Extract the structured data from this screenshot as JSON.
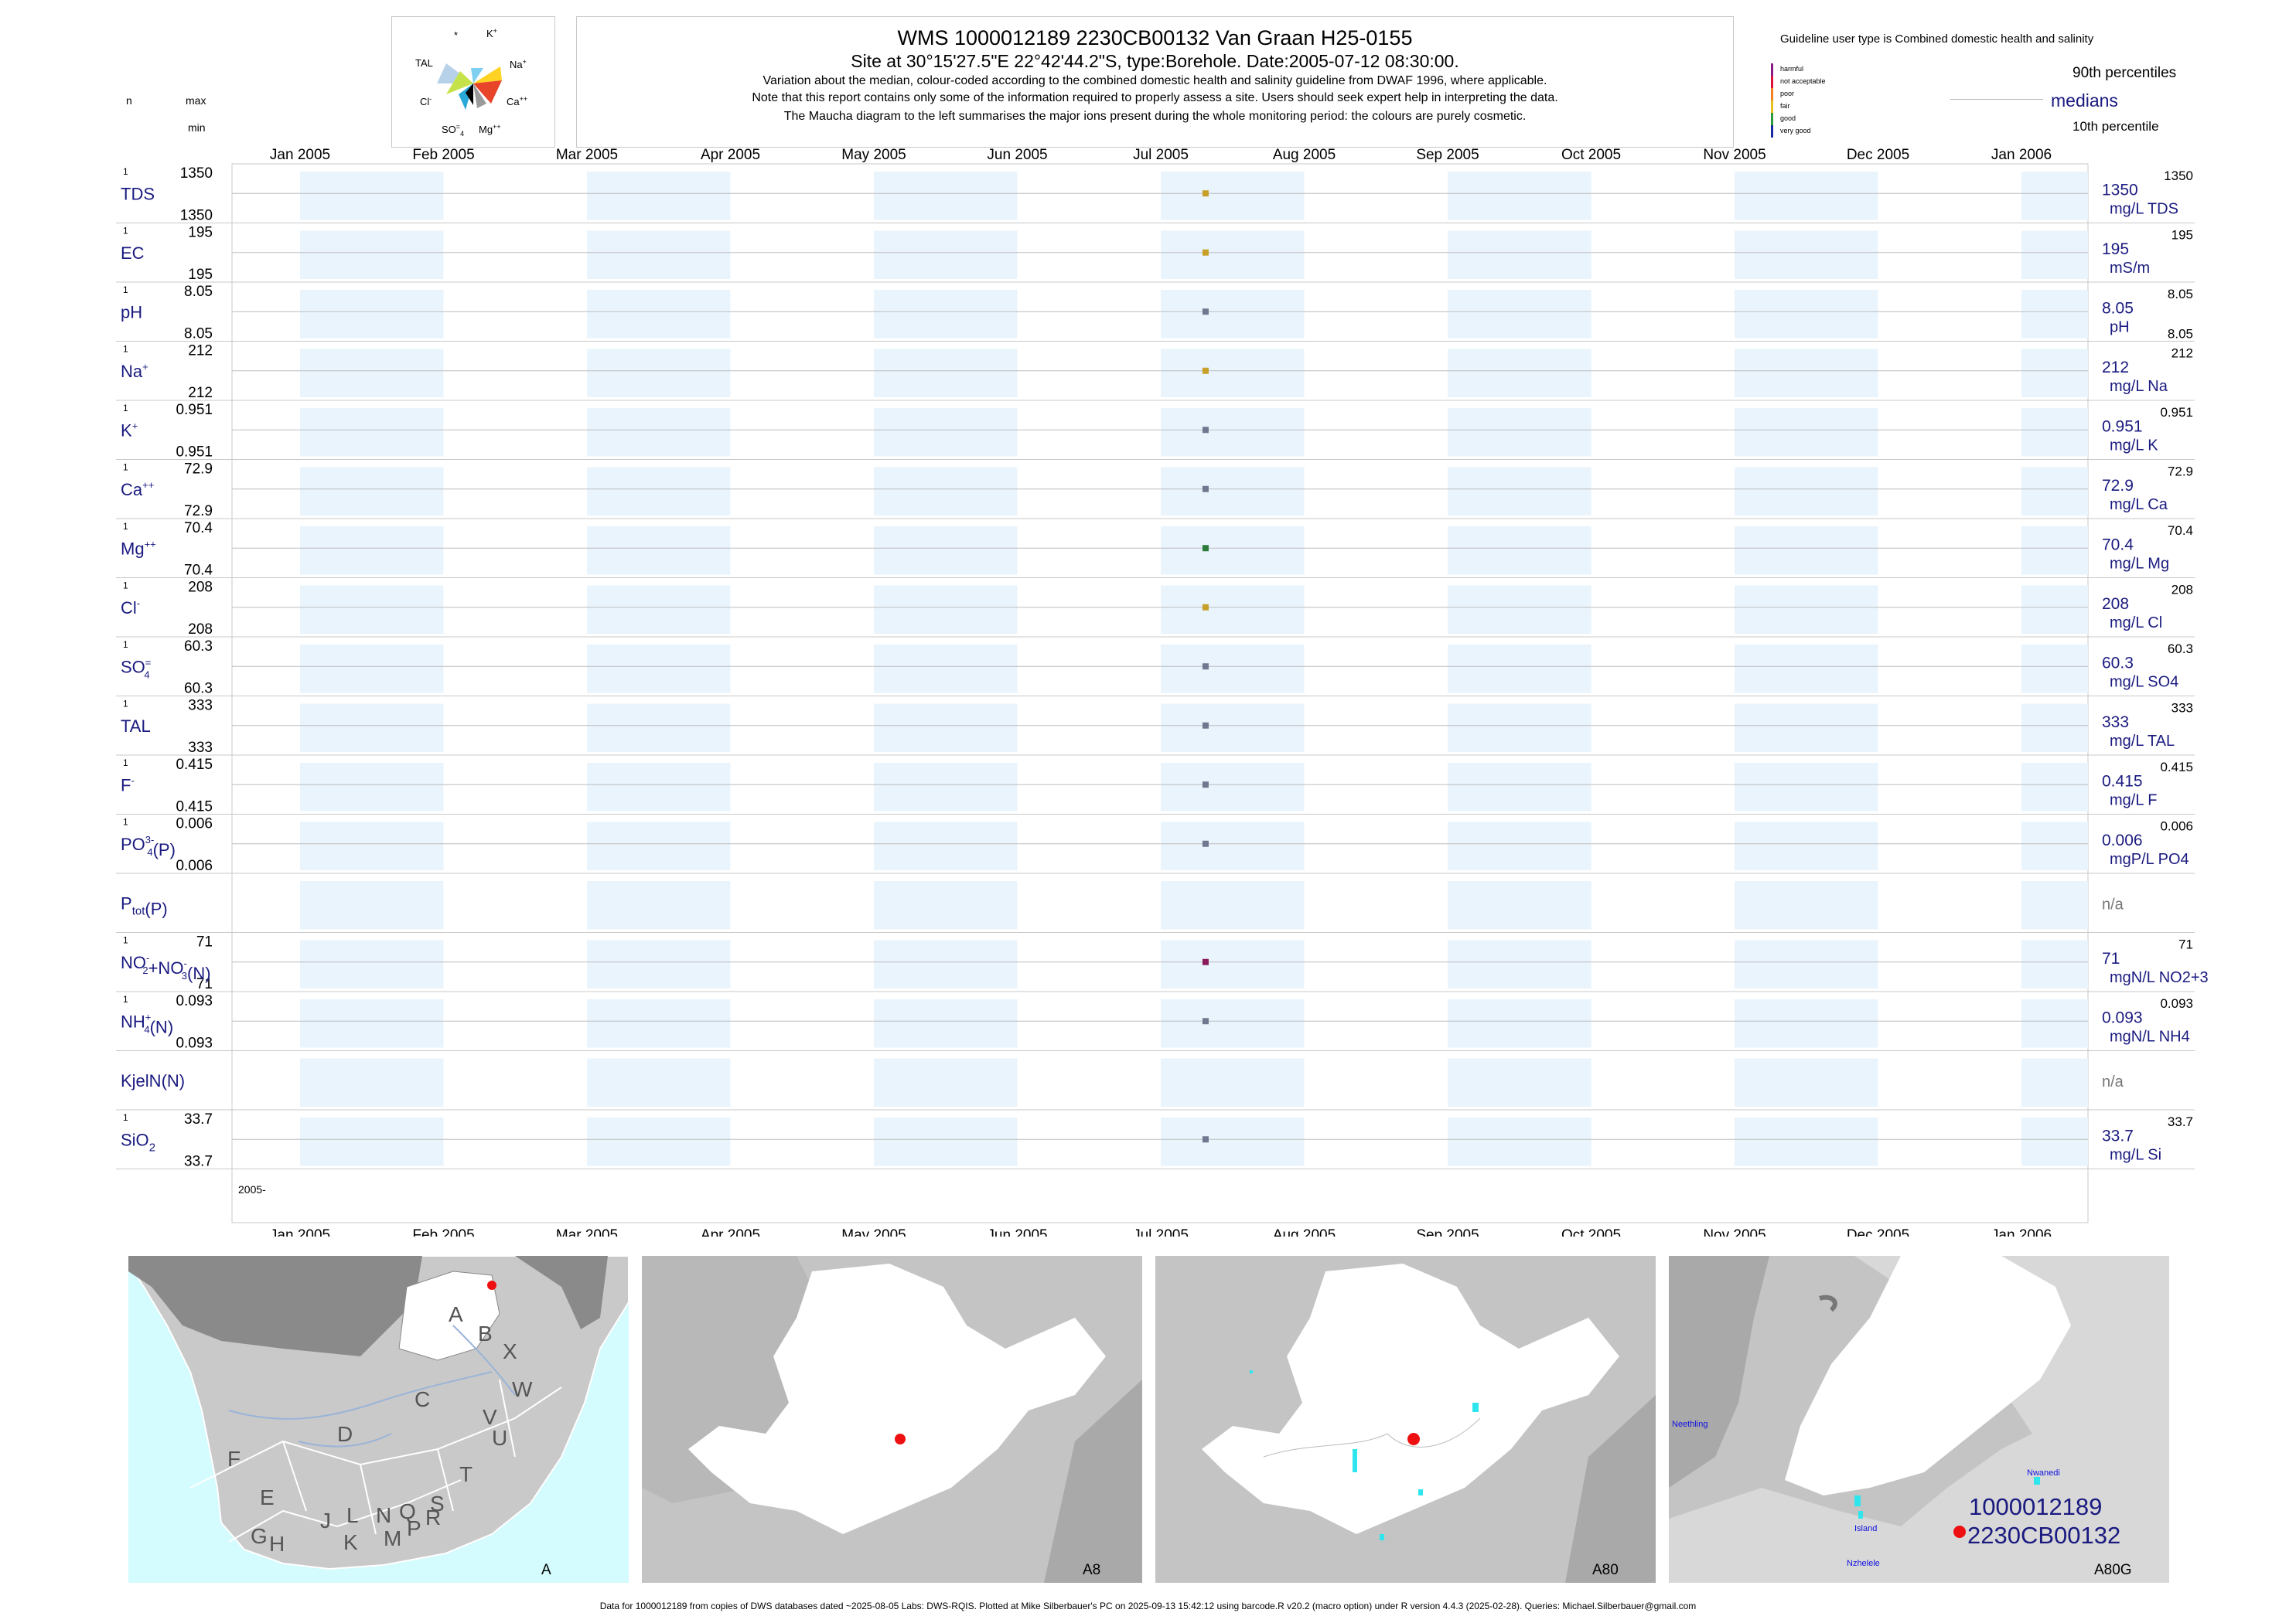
{
  "header": {
    "title": "WMS 1000012189 2230CB00132 Van Graan H25-0155",
    "subtitle": "Site at 30°15'27.5\"E 22°42'44.2\"S, type:Borehole. Date:2005-07-12 08:30:00.",
    "note1": "Variation about the median,  colour-coded according to the combined domestic health and salinity guideline from DWAF 1996, where applicable.",
    "note2": "Note that this report contains only some of the information required to properly assess a site. Users should seek expert help in interpreting the data.",
    "note3": "The Maucha diagram to the left summarises the major ions present during the whole monitoring period: the colours are purely cosmetic."
  },
  "maucha": {
    "labels": [
      "*",
      "K",
      "TAL",
      "Na",
      "Cl",
      "Ca",
      "SO",
      "Mg"
    ],
    "sup_k": "+",
    "sup_na": "+",
    "sup_cl": "-",
    "sup_ca": "++",
    "sup_so": "=",
    "sub_so": "4",
    "sup_mg": "++"
  },
  "left_header": {
    "n": "n",
    "max": "max",
    "min": "min"
  },
  "legend": {
    "guideline": "Guideline user type is Combined domestic health and salinity",
    "classes": [
      {
        "label": "harmful",
        "color": "#8b1a8b"
      },
      {
        "label": "not acceptable",
        "color": "#e0103c"
      },
      {
        "label": "poor",
        "color": "#f08020"
      },
      {
        "label": "fair",
        "color": "#e8c020"
      },
      {
        "label": "good",
        "color": "#2a9a3a"
      },
      {
        "label": "very good",
        "color": "#1a2aa0"
      }
    ],
    "p90": "90th percentiles",
    "medians": "medians",
    "p10": "10th percentile"
  },
  "axis": {
    "months": [
      "Jan 2005",
      "Feb 2005",
      "Mar 2005",
      "Apr 2005",
      "May 2005",
      "Jun 2005",
      "Jul 2005",
      "Aug 2005",
      "Sep 2005",
      "Oct 2005",
      "Nov 2005",
      "Dec 2005",
      "Jan 2006"
    ],
    "year_label": "2005-"
  },
  "chart_data": {
    "type": "scatter",
    "x_range": [
      "2005-01-01",
      "2006-01-01"
    ],
    "sample_date": "2005-07-12",
    "series": [
      {
        "name": "TDS",
        "sup": "",
        "sub": "",
        "n": "1",
        "max": "1350",
        "min": "1350",
        "value": 1350,
        "median": "1350",
        "unit": "mg/L TDS",
        "p90": "1350",
        "p10": "",
        "color": "#c8a028"
      },
      {
        "name": "EC",
        "sup": "",
        "sub": "",
        "n": "1",
        "max": "195",
        "min": "195",
        "value": 195,
        "median": "195",
        "unit": "mS/m",
        "p90": "195",
        "p10": "",
        "color": "#c8a028"
      },
      {
        "name": "pH",
        "sup": "",
        "sub": "",
        "n": "1",
        "max": "8.05",
        "min": "8.05",
        "value": 8.05,
        "median": "8.05",
        "unit": "pH",
        "p90": "8.05",
        "p10": "8.05",
        "color": "#707890"
      },
      {
        "name": "Na",
        "sup": "+",
        "sub": "",
        "n": "1",
        "max": "212",
        "min": "212",
        "value": 212,
        "median": "212",
        "unit": "mg/L Na",
        "p90": "212",
        "p10": "",
        "color": "#c8a028"
      },
      {
        "name": "K",
        "sup": "+",
        "sub": "",
        "n": "1",
        "max": "0.951",
        "min": "0.951",
        "value": 0.951,
        "median": "0.951",
        "unit": "mg/L K",
        "p90": "0.951",
        "p10": "",
        "color": "#707890"
      },
      {
        "name": "Ca",
        "sup": "++",
        "sub": "",
        "n": "1",
        "max": "72.9",
        "min": "72.9",
        "value": 72.9,
        "median": "72.9",
        "unit": "mg/L Ca",
        "p90": "72.9",
        "p10": "",
        "color": "#707890"
      },
      {
        "name": "Mg",
        "sup": "++",
        "sub": "",
        "n": "1",
        "max": "70.4",
        "min": "70.4",
        "value": 70.4,
        "median": "70.4",
        "unit": "mg/L Mg",
        "p90": "70.4",
        "p10": "",
        "color": "#2a7a3a"
      },
      {
        "name": "Cl",
        "sup": "-",
        "sub": "",
        "n": "1",
        "max": "208",
        "min": "208",
        "value": 208,
        "median": "208",
        "unit": "mg/L Cl",
        "p90": "208",
        "p10": "",
        "color": "#c8a028"
      },
      {
        "name": "SO",
        "sup": "=",
        "sub": "4",
        "n": "1",
        "max": "60.3",
        "min": "60.3",
        "value": 60.3,
        "median": "60.3",
        "unit": "mg/L SO4",
        "p90": "60.3",
        "p10": "",
        "color": "#707890"
      },
      {
        "name": "TAL",
        "sup": "",
        "sub": "",
        "n": "1",
        "max": "333",
        "min": "333",
        "value": 333,
        "median": "333",
        "unit": "mg/L TAL",
        "p90": "333",
        "p10": "",
        "color": "#707890"
      },
      {
        "name": "F",
        "sup": "-",
        "sub": "",
        "n": "1",
        "max": "0.415",
        "min": "0.415",
        "value": 0.415,
        "median": "0.415",
        "unit": "mg/L F",
        "p90": "0.415",
        "p10": "",
        "color": "#707890"
      },
      {
        "name": "PO",
        "sup": "3-",
        "sub": "4",
        "suffix": "(P)",
        "n": "1",
        "max": "0.006",
        "min": "0.006",
        "value": 0.006,
        "median": "0.006",
        "unit": "mgP/L PO4",
        "p90": "0.006",
        "p10": "",
        "color": "#707890"
      },
      {
        "name": "P",
        "sup": "",
        "sub": "tot",
        "suffix": "(P)",
        "n": "",
        "max": "",
        "min": "",
        "value": null,
        "median": "n/a",
        "unit": "",
        "p90": "",
        "p10": "",
        "color": ""
      },
      {
        "name": "NO",
        "sup": "-",
        "sub": "2",
        "suffix": "+NO",
        "sup2": "-",
        "sub2": "3",
        "suffix2": "(N)",
        "n": "1",
        "max": "71",
        "min": "71",
        "value": 71,
        "median": "71",
        "unit": "mgN/L NO2+3",
        "p90": "71",
        "p10": "",
        "color": "#8b1a5a"
      },
      {
        "name": "NH",
        "sup": "+",
        "sub": "4",
        "suffix": "(N)",
        "n": "1",
        "max": "0.093",
        "min": "0.093",
        "value": 0.093,
        "median": "0.093",
        "unit": "mgN/L NH4",
        "p90": "0.093",
        "p10": "",
        "color": "#707890"
      },
      {
        "name": "KjelN(N)",
        "sup": "",
        "sub": "",
        "n": "",
        "max": "",
        "min": "",
        "value": null,
        "median": "n/a",
        "unit": "",
        "p90": "",
        "p10": "",
        "color": ""
      },
      {
        "name": "SiO",
        "sup": "",
        "sub": "2",
        "n": "1",
        "max": "33.7",
        "min": "33.7",
        "value": 33.7,
        "median": "33.7",
        "unit": "mg/L Si",
        "p90": "33.7",
        "p10": "",
        "color": "#707890"
      }
    ]
  },
  "maps": {
    "m1": {
      "tag": "A",
      "regions": [
        "A",
        "B",
        "X",
        "W",
        "C",
        "D",
        "V",
        "U",
        "F",
        "T",
        "E",
        "S",
        "R",
        "Q",
        "N",
        "L",
        "J",
        "G",
        "H",
        "K",
        "M",
        "P"
      ]
    },
    "m2": {
      "tag": "A8"
    },
    "m3": {
      "tag": "A80"
    },
    "m4": {
      "tag": "A80G",
      "site_line1": "1000012189",
      "site_line2": "2230CB00132",
      "places": [
        "Neethling",
        "Nwanedi",
        "Island",
        "Nzhelele"
      ]
    }
  },
  "footer": "Data for 1000012189 from copies of DWS databases dated ~2025-08-05 Labs: DWS-RQIS. Plotted at Mike Silberbauer's PC on 2025-09-13 15:42:12 using barcode.R v20.2 (macro option) under R version 4.4.3 (2025-02-28). Queries: Michael.Silberbauer@gmail.com"
}
